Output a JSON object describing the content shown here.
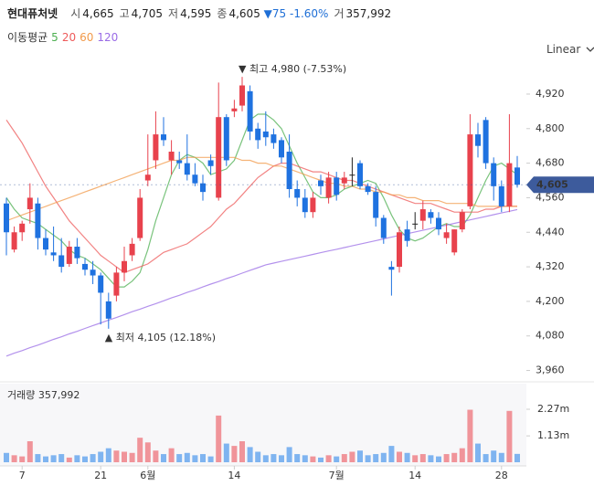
{
  "header": {
    "name": "현대퓨처넷",
    "open_key": "시",
    "open": "4,665",
    "high_key": "고",
    "high": "4,705",
    "low_key": "저",
    "low": "4,595",
    "close_key": "종",
    "close": "4,605",
    "change": "▼75",
    "change_pct": "-1.60%",
    "volume_key": "거",
    "volume": "357,992",
    "scale_label": "Linear"
  },
  "chart_data": [
    {
      "type": "candlestick",
      "legend_title": "이동평균",
      "categories": [
        null,
        null,
        "7",
        null,
        null,
        null,
        null,
        null,
        null,
        null,
        null,
        null,
        "21",
        null,
        null,
        null,
        null,
        null,
        "6월",
        null,
        null,
        null,
        null,
        null,
        null,
        null,
        null,
        null,
        null,
        "14",
        null,
        null,
        null,
        null,
        null,
        null,
        null,
        null,
        null,
        null,
        null,
        null,
        "7월",
        null,
        null,
        null,
        null,
        null,
        null,
        null,
        null,
        null,
        "14",
        null,
        null,
        null,
        null,
        null,
        null,
        null,
        null,
        null,
        null,
        "28",
        null,
        null
      ],
      "open": [
        4540,
        4380,
        4440,
        4520,
        4540,
        4420,
        4370,
        4360,
        4330,
        4390,
        4330,
        4310,
        4290,
        4200,
        4220,
        4300,
        4360,
        4420,
        4620,
        4690,
        4780,
        4690,
        4690,
        4680,
        4640,
        4610,
        4690,
        4560,
        4840,
        4860,
        4880,
        4930,
        4800,
        4790,
        4780,
        4760,
        4720,
        4590,
        4560,
        4510,
        4620,
        4560,
        4630,
        4610,
        4640,
        4680,
        4600,
        4580,
        4490,
        4320,
        4320,
        4450,
        4470,
        4480,
        4510,
        4490,
        4420,
        4370,
        4450,
        4530,
        4780,
        4830,
        4680,
        4600,
        4530,
        4665
      ],
      "high": [
        4560,
        4460,
        4480,
        4610,
        4560,
        4450,
        4460,
        4420,
        4410,
        4420,
        4350,
        4340,
        4300,
        4230,
        4320,
        4390,
        4420,
        4590,
        4780,
        4860,
        4840,
        4760,
        4720,
        4780,
        4680,
        4640,
        4710,
        4960,
        4850,
        4900,
        4980,
        4950,
        4820,
        4860,
        4800,
        4770,
        4780,
        4620,
        4590,
        4580,
        4640,
        4650,
        4650,
        4650,
        4700,
        4690,
        4610,
        4600,
        4500,
        4340,
        4460,
        4480,
        4510,
        4550,
        4520,
        4510,
        4470,
        4450,
        4520,
        4850,
        4820,
        4840,
        4700,
        4620,
        4850,
        4705
      ],
      "low": [
        4360,
        4370,
        4410,
        4470,
        4380,
        4360,
        4340,
        4300,
        4320,
        4330,
        4290,
        4260,
        4120,
        4105,
        4200,
        4270,
        4340,
        4410,
        4600,
        4660,
        4740,
        4640,
        4660,
        4620,
        4600,
        4550,
        4640,
        4550,
        4670,
        4840,
        4860,
        4760,
        4730,
        4740,
        4730,
        4680,
        4560,
        4530,
        4490,
        4490,
        4570,
        4540,
        4550,
        4590,
        4600,
        4590,
        4570,
        4460,
        4400,
        4220,
        4300,
        4390,
        4450,
        4450,
        4470,
        4430,
        4400,
        4360,
        4440,
        4520,
        4700,
        4660,
        4550,
        4510,
        4510,
        4595
      ],
      "close": [
        4440,
        4440,
        4470,
        4560,
        4420,
        4380,
        4360,
        4320,
        4390,
        4350,
        4310,
        4290,
        4230,
        4140,
        4300,
        4340,
        4400,
        4560,
        4640,
        4780,
        4760,
        4720,
        4680,
        4640,
        4610,
        4580,
        4670,
        4840,
        4690,
        4870,
        4950,
        4790,
        4760,
        4770,
        4750,
        4700,
        4590,
        4560,
        4510,
        4560,
        4600,
        4630,
        4570,
        4630,
        4640,
        4600,
        4580,
        4490,
        4420,
        4310,
        4440,
        4410,
        4470,
        4520,
        4490,
        4450,
        4440,
        4450,
        4510,
        4780,
        4740,
        4680,
        4600,
        4530,
        4680,
        4605
      ],
      "up_color": "#e8424d",
      "down_color": "#1f72e0",
      "series": [
        {
          "name": "5",
          "color": "#4caf50",
          "values": [
            4560,
            4520,
            4490,
            4480,
            4470,
            4450,
            4430,
            4410,
            4380,
            4360,
            4350,
            4330,
            4310,
            4280,
            4250,
            4250,
            4270,
            4300,
            4380,
            4480,
            4560,
            4640,
            4690,
            4710,
            4700,
            4680,
            4640,
            4650,
            4660,
            4690,
            4760,
            4830,
            4850,
            4850,
            4830,
            4800,
            4740,
            4680,
            4630,
            4580,
            4560,
            4560,
            4570,
            4590,
            4600,
            4610,
            4620,
            4610,
            4560,
            4500,
            4450,
            4420,
            4410,
            4420,
            4440,
            4460,
            4470,
            4460,
            4460,
            4500,
            4560,
            4620,
            4670,
            4680,
            4660,
            4640
          ]
        },
        {
          "name": "20",
          "color": "#ee5a5a",
          "values": [
            4830,
            4790,
            4750,
            4700,
            4650,
            4600,
            4560,
            4520,
            4480,
            4450,
            4420,
            4390,
            4360,
            4340,
            4320,
            4300,
            4310,
            4320,
            4330,
            4350,
            4370,
            4380,
            4390,
            4400,
            4420,
            4440,
            4460,
            4490,
            4520,
            4540,
            4570,
            4600,
            4630,
            4650,
            4670,
            4680,
            4680,
            4670,
            4660,
            4650,
            4650,
            4640,
            4630,
            4620,
            4620,
            4610,
            4600,
            4590,
            4580,
            4570,
            4560,
            4550,
            4540,
            4540,
            4540,
            4530,
            4520,
            4510,
            4510,
            4510,
            4510,
            4520,
            4520,
            4530,
            4530,
            4530
          ]
        },
        {
          "name": "60",
          "color": "#f29a4a",
          "values": [
            4480,
            4490,
            4500,
            4510,
            4520,
            4530,
            4540,
            4550,
            4560,
            4570,
            4580,
            4590,
            4600,
            4610,
            4620,
            4630,
            4640,
            4650,
            4660,
            4670,
            4680,
            4690,
            4690,
            4700,
            4700,
            4700,
            4700,
            4700,
            4700,
            4700,
            4690,
            4690,
            4680,
            4680,
            4670,
            4670,
            4660,
            4650,
            4640,
            4630,
            4620,
            4610,
            4610,
            4600,
            4600,
            4590,
            4590,
            4580,
            4580,
            4570,
            4570,
            4560,
            4560,
            4550,
            4550,
            4550,
            4540,
            4540,
            4540,
            4540,
            4530,
            4530,
            4530,
            4530,
            4530,
            4530
          ]
        },
        {
          "name": "120",
          "color": "#9a6ce6",
          "values": [
            4010,
            4020,
            4029,
            4039,
            4048,
            4058,
            4068,
            4077,
            4087,
            4096,
            4106,
            4116,
            4125,
            4135,
            4144,
            4154,
            4164,
            4173,
            4183,
            4192,
            4202,
            4212,
            4221,
            4231,
            4240,
            4250,
            4260,
            4269,
            4279,
            4288,
            4298,
            4308,
            4317,
            4327,
            4333,
            4339,
            4345,
            4351,
            4357,
            4363,
            4369,
            4375,
            4381,
            4387,
            4393,
            4399,
            4405,
            4411,
            4417,
            4423,
            4429,
            4435,
            4441,
            4447,
            4453,
            4459,
            4465,
            4471,
            4477,
            4483,
            4489,
            4495,
            4501,
            4507,
            4513,
            4519
          ]
        }
      ],
      "ylim": [
        3930,
        5050
      ],
      "yticks": [
        {
          "value": 4920,
          "label": "4,920"
        },
        {
          "value": 4800,
          "label": "4,800"
        },
        {
          "value": 4680,
          "label": "4,680"
        },
        {
          "value": 4560,
          "label": "4,560"
        },
        {
          "value": 4440,
          "label": "4,440"
        },
        {
          "value": 4320,
          "label": "4,320"
        },
        {
          "value": 4200,
          "label": "4,200"
        },
        {
          "value": 4080,
          "label": "4,080"
        },
        {
          "value": 3960,
          "label": "3,960"
        }
      ],
      "current_price": {
        "value": 4605,
        "label": "4,605"
      },
      "annotations": [
        {
          "text": "▼ 최고 4,980 (-7.53%)",
          "value": 4980
        },
        {
          "text": "▲ 최저 4,105 (12.18%)",
          "value": 4105
        }
      ],
      "grid": false
    },
    {
      "type": "bar",
      "title": "거래량 357,992",
      "values": [
        400000,
        300000,
        250000,
        900000,
        350000,
        250000,
        300000,
        350000,
        200000,
        300000,
        250000,
        350000,
        450000,
        600000,
        500000,
        450000,
        400000,
        1050000,
        850000,
        500000,
        350000,
        600000,
        350000,
        400000,
        300000,
        350000,
        250000,
        2000000,
        800000,
        700000,
        900000,
        650000,
        450000,
        300000,
        350000,
        300000,
        650000,
        350000,
        300000,
        250000,
        200000,
        300000,
        250000,
        350000,
        450000,
        500000,
        300000,
        350000,
        400000,
        700000,
        450000,
        400000,
        300000,
        350000,
        300000,
        250000,
        350000,
        400000,
        600000,
        2250000,
        800000,
        350000,
        500000,
        400000,
        2200000,
        357992
      ],
      "up_color": "#f0949a",
      "down_color": "#7fb4f0",
      "ylim": [
        0,
        3170000
      ],
      "yticks": [
        {
          "value": 2270000,
          "label": "2.27m"
        },
        {
          "value": 1130000,
          "label": "1.13m"
        }
      ]
    }
  ]
}
